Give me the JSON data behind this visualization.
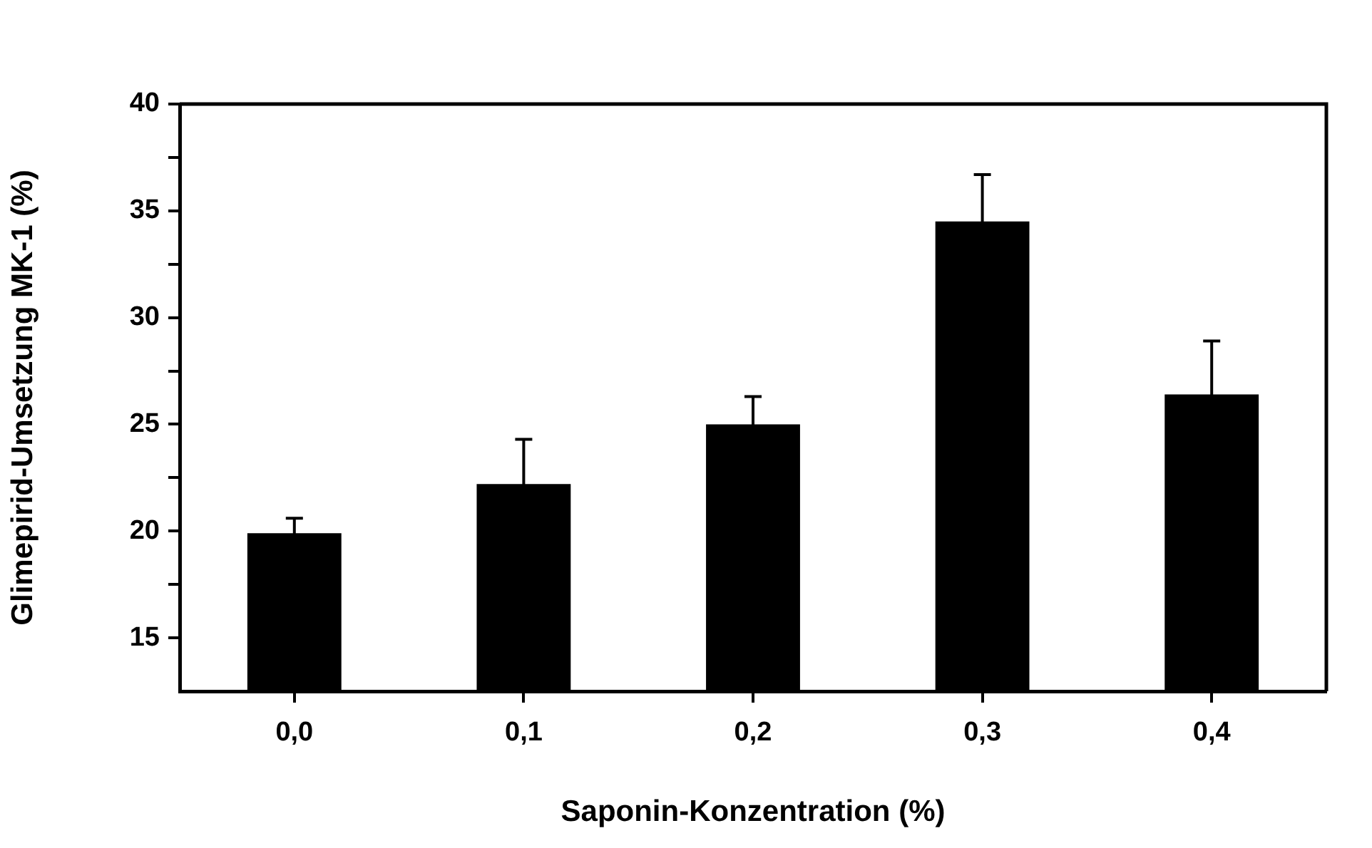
{
  "chart_data": {
    "type": "bar",
    "xlabel": "Saponin-Konzentration (%)",
    "ylabel": "Glimepirid-Umsetzung MK-1 (%)",
    "categories": [
      "0,0",
      "0,1",
      "0,2",
      "0,3",
      "0,4"
    ],
    "values": [
      19.9,
      22.2,
      25.0,
      34.5,
      26.4
    ],
    "errors": [
      0.7,
      2.1,
      1.3,
      2.2,
      2.5
    ],
    "color": "#000000",
    "ylim": [
      12.5,
      40
    ],
    "yticks": [
      15,
      {
        "value": 17.5,
        "label": null
      },
      20,
      {
        "value": 22.5,
        "label": null
      },
      25,
      {
        "value": 27.5,
        "label": null
      },
      30,
      {
        "value": 32.5,
        "label": null
      },
      35,
      {
        "value": 37.5,
        "label": null
      },
      40
    ]
  }
}
